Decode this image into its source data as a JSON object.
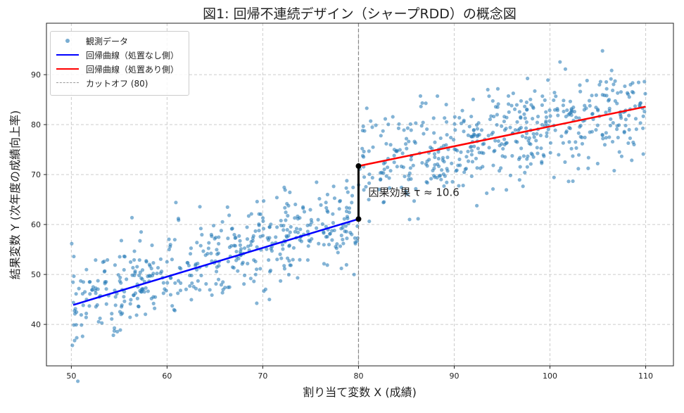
{
  "chart_data": {
    "type": "scatter",
    "title": "図1: 回帰不連続デザイン（シャープRDD）の概念図",
    "xlabel": "割り当て変数 X (成績)",
    "ylabel": "結果変数 Y (次年度の成績向上率)",
    "xlim": [
      47.4,
      112.9
    ],
    "ylim": [
      31.7,
      100.3
    ],
    "xticks": [
      50,
      60,
      70,
      80,
      90,
      100,
      110
    ],
    "yticks": [
      40,
      50,
      60,
      70,
      80,
      90
    ],
    "grid": true,
    "legend_placement": "top-left",
    "legend": [
      "観測データ",
      "回帰曲線（処置なし側）",
      "回帰曲線（処置あり側）",
      "カットオフ (80)"
    ],
    "cutoff": 80,
    "series": [
      {
        "name": "観測データ",
        "kind": "scatter",
        "color": "#1f77b4",
        "n_points": 1000,
        "x_range": [
          50,
          110
        ],
        "noise_sd": 4.5,
        "model_below": {
          "intercept_at_50": 43.9,
          "slope": 0.577
        },
        "model_above": {
          "intercept_at_80": 71.7,
          "slope": 0.397
        }
      },
      {
        "name": "回帰曲線（処置なし側）",
        "kind": "line",
        "color": "#0000ff",
        "x": [
          50.2,
          80
        ],
        "y": [
          43.9,
          61.1
        ]
      },
      {
        "name": "回帰曲線（処置あり側）",
        "kind": "line",
        "color": "#ff0000",
        "x": [
          80,
          110
        ],
        "y": [
          71.7,
          83.6
        ]
      }
    ],
    "annotation": {
      "text": "因果効果 τ ≈ 10.6",
      "x": 80,
      "y_from": 61.1,
      "y_to": 71.7
    }
  }
}
